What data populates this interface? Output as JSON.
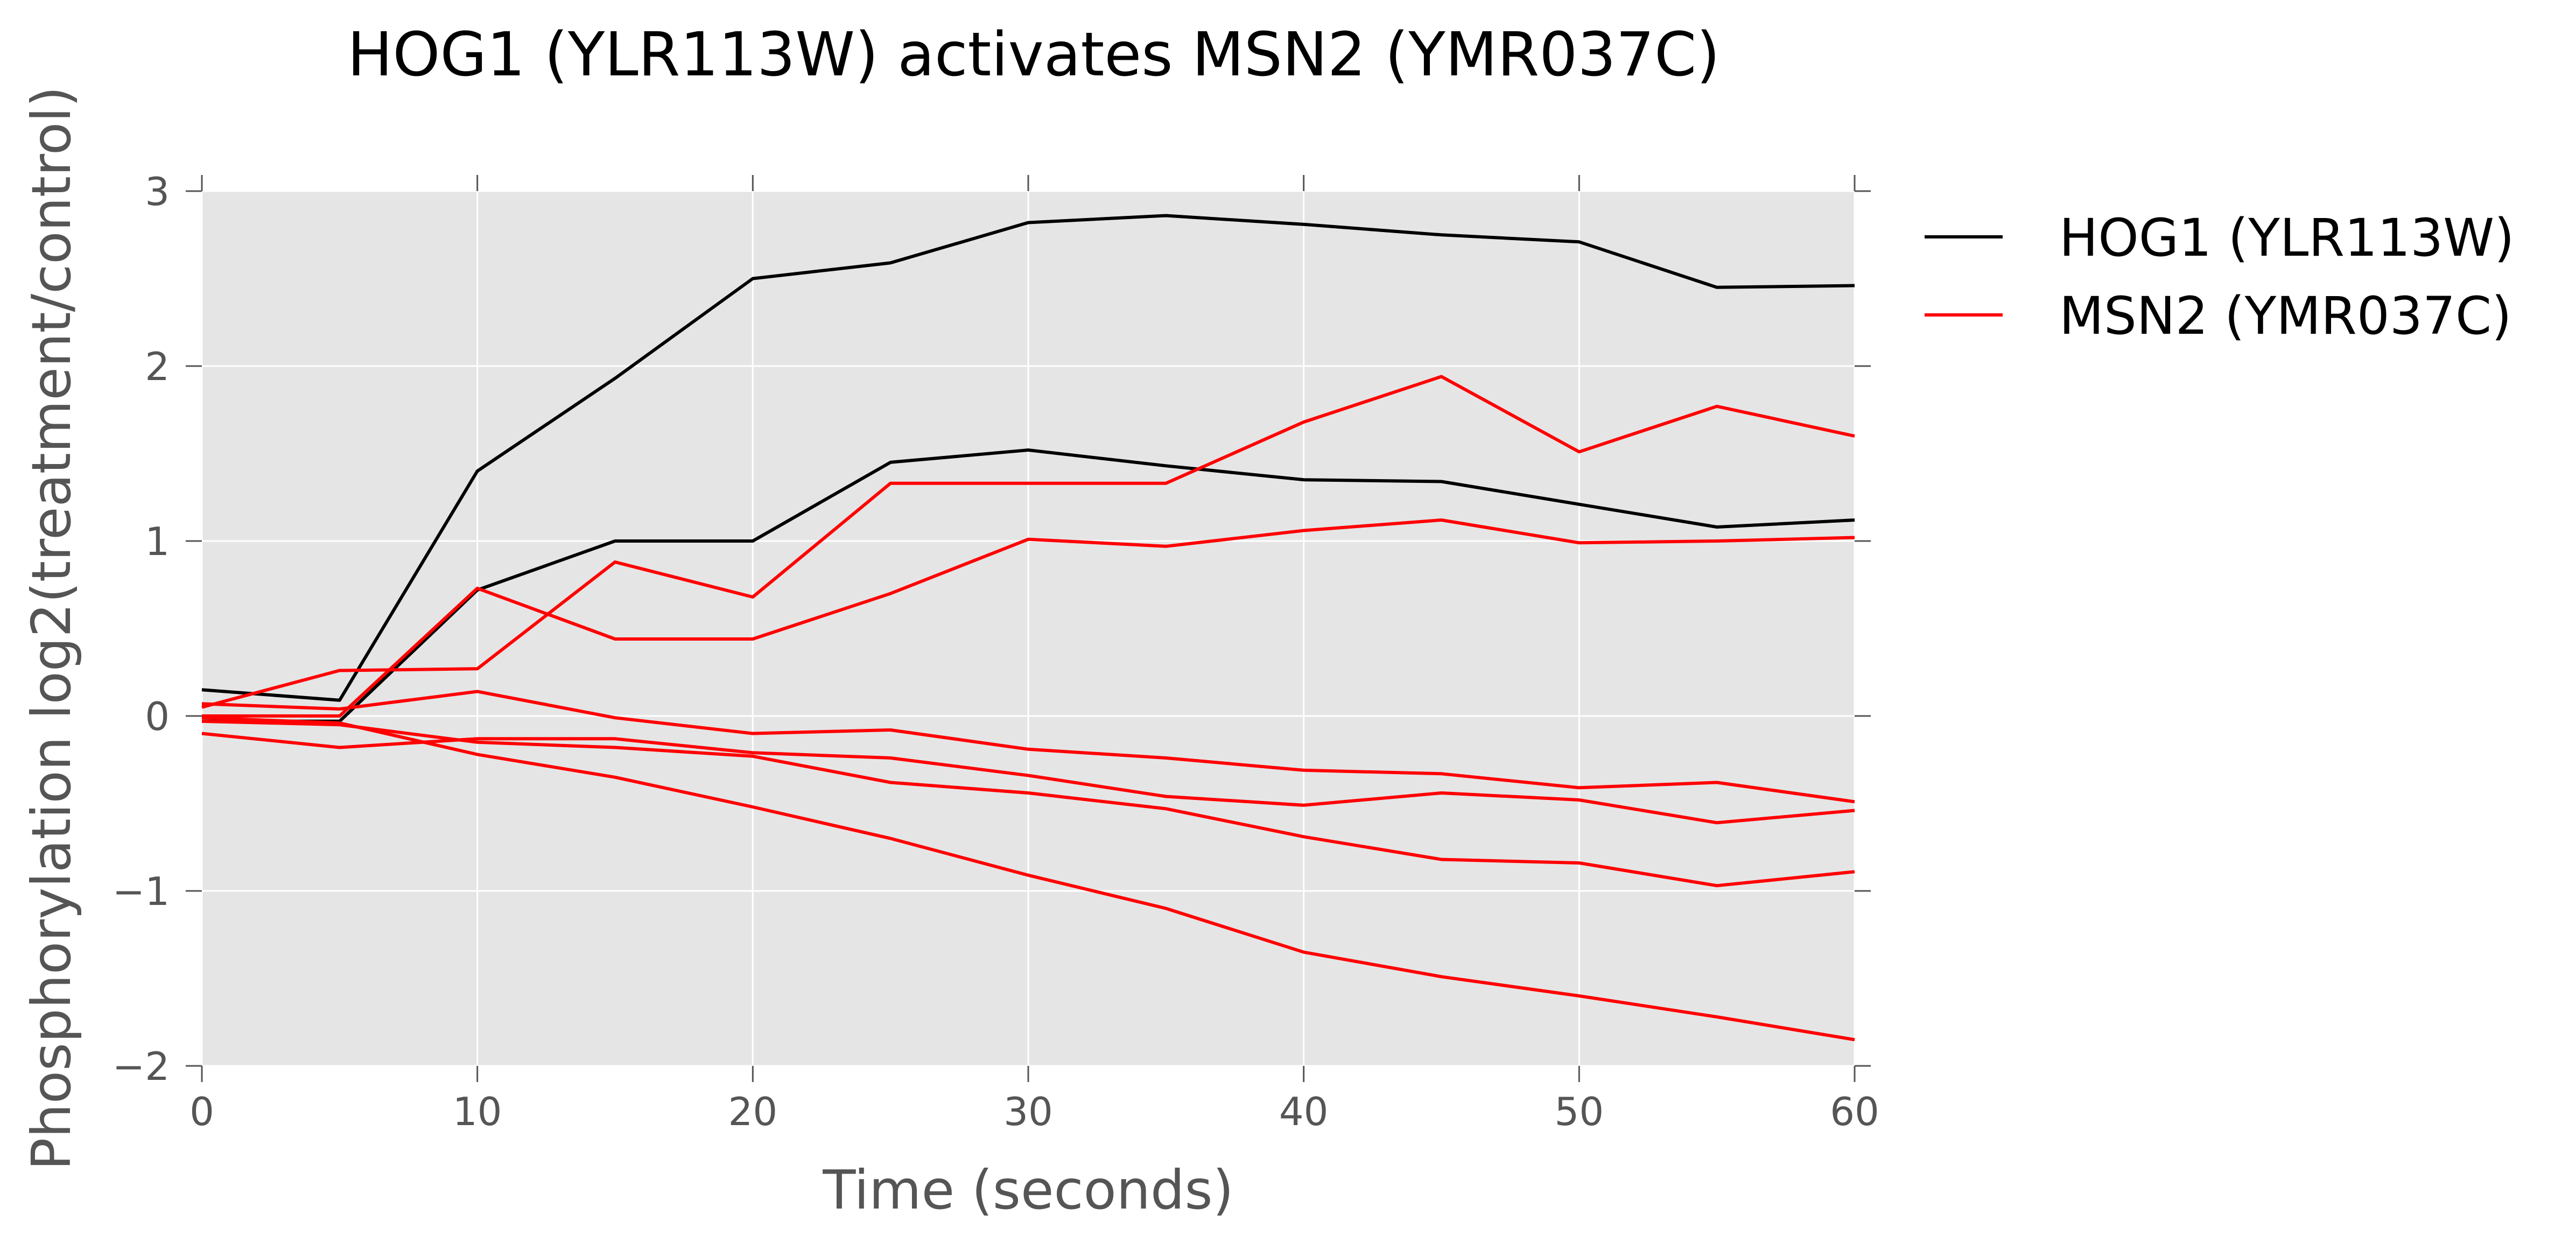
{
  "chart_data": {
    "type": "line",
    "title": "HOG1 (YLR113W) activates MSN2 (YMR037C)",
    "xlabel": "Time (seconds)",
    "ylabel": "Phosphorylation log2(treatment/control)",
    "xlim": [
      0,
      60
    ],
    "ylim": [
      -2,
      3
    ],
    "x_ticks": [
      "0",
      "10",
      "20",
      "30",
      "40",
      "50",
      "60"
    ],
    "y_ticks": [
      "−2",
      "−1",
      "0",
      "1",
      "2",
      "3"
    ],
    "grid": true,
    "background": "#e5e5e5",
    "legend_position": "outside-right",
    "legend": [
      {
        "label": "HOG1 (YLR113W)",
        "color": "#000000"
      },
      {
        "label": "MSN2 (YMR037C)",
        "color": "#ff0000"
      }
    ],
    "x": [
      0,
      5,
      10,
      15,
      20,
      25,
      30,
      35,
      40,
      45,
      50,
      55,
      60
    ],
    "series": [
      {
        "group": "HOG1 (YLR113W)",
        "color": "#000000",
        "values": [
          0.15,
          0.09,
          1.4,
          1.93,
          2.5,
          2.59,
          2.82,
          2.86,
          2.81,
          2.75,
          2.71,
          2.45,
          2.46
        ]
      },
      {
        "group": "HOG1 (YLR113W)",
        "color": "#000000",
        "values": [
          -0.03,
          -0.03,
          0.72,
          1.0,
          1.0,
          1.45,
          1.52,
          1.43,
          1.35,
          1.34,
          1.21,
          1.08,
          1.12
        ]
      },
      {
        "group": "MSN2 (YMR037C)",
        "color": "#ff0000",
        "values": [
          0.05,
          0.26,
          0.27,
          0.88,
          0.68,
          1.33,
          1.33,
          1.33,
          1.68,
          1.94,
          1.51,
          1.77,
          1.6
        ]
      },
      {
        "group": "MSN2 (YMR037C)",
        "color": "#ff0000",
        "values": [
          0.0,
          0.0,
          0.73,
          0.44,
          0.44,
          0.7,
          1.01,
          0.97,
          1.06,
          1.12,
          0.99,
          1.0,
          1.02
        ]
      },
      {
        "group": "MSN2 (YMR037C)",
        "color": "#ff0000",
        "values": [
          0.07,
          0.04,
          0.14,
          -0.01,
          -0.1,
          -0.08,
          -0.19,
          -0.24,
          -0.31,
          -0.33,
          -0.41,
          -0.38,
          -0.49
        ]
      },
      {
        "group": "MSN2 (YMR037C)",
        "color": "#ff0000",
        "values": [
          -0.1,
          -0.18,
          -0.13,
          -0.13,
          -0.21,
          -0.24,
          -0.34,
          -0.46,
          -0.51,
          -0.44,
          -0.48,
          -0.61,
          -0.54
        ]
      },
      {
        "group": "MSN2 (YMR037C)",
        "color": "#ff0000",
        "values": [
          -0.03,
          -0.05,
          -0.15,
          -0.18,
          -0.23,
          -0.38,
          -0.44,
          -0.53,
          -0.69,
          -0.82,
          -0.84,
          -0.97,
          -0.89
        ]
      },
      {
        "group": "MSN2 (YMR037C)",
        "color": "#ff0000",
        "values": [
          -0.01,
          -0.04,
          -0.22,
          -0.35,
          -0.52,
          -0.7,
          -0.91,
          -1.1,
          -1.35,
          -1.49,
          -1.6,
          -1.72,
          -1.85
        ]
      }
    ]
  }
}
